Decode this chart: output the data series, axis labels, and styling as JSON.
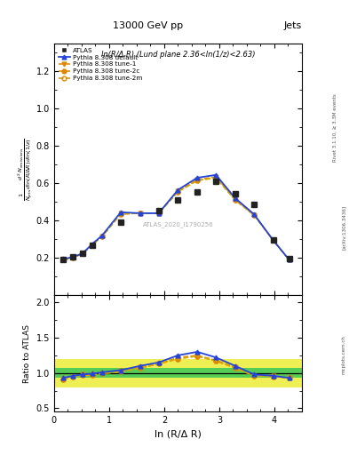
{
  "title_top": "13000 GeV pp",
  "title_right": "Jets",
  "plot_title": "ln(R/Δ R) (Lund plane 2.36<ln(1/z)<2.63)",
  "watermark": "ATLAS_2020_I1790256",
  "xlabel": "ln (R/Δ R)",
  "ylabel_ratio": "Ratio to ATLAS",
  "rivet_label": "Rivet 3.1.10, ≥ 3.3M events",
  "arxiv_label": "[arXiv:1306.3436]",
  "mcplots_label": "mcplots.cern.ch",
  "x_data": [
    0.17,
    0.34,
    0.52,
    0.69,
    0.87,
    1.21,
    1.56,
    1.9,
    2.25,
    2.6,
    2.94,
    3.29,
    3.63,
    3.98,
    4.27
  ],
  "atlas_y": [
    0.19,
    0.205,
    0.225,
    0.27,
    null,
    0.39,
    null,
    0.455,
    0.51,
    0.555,
    0.61,
    0.545,
    0.485,
    0.295,
    0.195
  ],
  "pythia_default_y": [
    0.195,
    0.205,
    0.225,
    0.275,
    0.32,
    0.445,
    0.44,
    0.44,
    0.565,
    0.63,
    0.645,
    0.52,
    0.435,
    0.295,
    0.19
  ],
  "pythia_tune1_y": [
    0.19,
    0.205,
    0.225,
    0.27,
    0.315,
    0.44,
    0.44,
    0.44,
    0.56,
    0.62,
    0.635,
    0.515,
    0.43,
    0.295,
    0.19
  ],
  "pythia_tune2c_y": [
    0.19,
    0.2,
    0.225,
    0.27,
    0.315,
    0.435,
    0.44,
    0.44,
    0.555,
    0.615,
    0.63,
    0.51,
    0.43,
    0.295,
    0.19
  ],
  "pythia_tune2m_y": [
    0.19,
    0.2,
    0.225,
    0.27,
    0.315,
    0.435,
    0.44,
    0.44,
    0.555,
    0.615,
    0.63,
    0.51,
    0.43,
    0.295,
    0.19
  ],
  "ratio_default": [
    0.93,
    0.96,
    0.98,
    0.99,
    1.01,
    1.04,
    1.1,
    1.15,
    1.25,
    1.3,
    1.22,
    1.1,
    0.98,
    0.96,
    0.93
  ],
  "ratio_tune1": [
    0.92,
    0.95,
    0.98,
    0.98,
    1.0,
    1.03,
    1.08,
    1.13,
    1.22,
    1.25,
    1.18,
    1.08,
    0.96,
    0.96,
    0.93
  ],
  "ratio_tune2c": [
    0.91,
    0.95,
    0.97,
    0.97,
    0.99,
    1.02,
    1.07,
    1.13,
    1.2,
    1.24,
    1.17,
    1.07,
    0.96,
    0.95,
    0.93
  ],
  "ratio_tune2m": [
    0.91,
    0.95,
    0.97,
    0.97,
    0.99,
    1.02,
    1.07,
    1.13,
    1.2,
    1.24,
    1.17,
    1.07,
    0.96,
    0.95,
    0.93
  ],
  "atlas_err_green": 0.07,
  "atlas_err_yellow": 0.2,
  "color_atlas": "#222222",
  "color_default": "#2244dd",
  "color_orange": "#dd8800",
  "color_tune2m": "#ddaa00",
  "xlim": [
    0,
    4.5
  ],
  "ylim_main": [
    0.0,
    1.35
  ],
  "ylim_ratio": [
    0.45,
    2.1
  ],
  "yticks_main": [
    0.2,
    0.4,
    0.6,
    0.8,
    1.0,
    1.2
  ],
  "yticks_ratio": [
    0.5,
    1.0,
    1.5,
    2.0
  ],
  "xticks": [
    0,
    1,
    2,
    3,
    4
  ]
}
